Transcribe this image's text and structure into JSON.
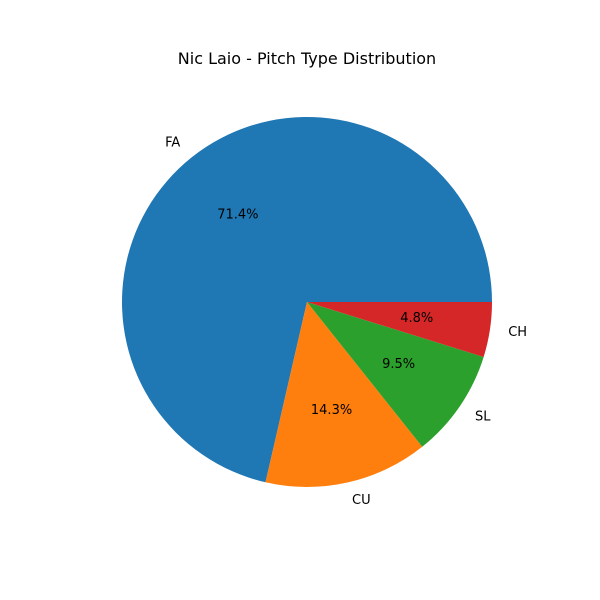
{
  "chart_data": {
    "type": "pie",
    "title": "Nic Laio - Pitch Type Distribution",
    "categories": [
      "FA",
      "CU",
      "SL",
      "CH"
    ],
    "values": [
      71.4,
      14.3,
      9.5,
      4.8
    ],
    "percent_labels": [
      "71.4%",
      "14.3%",
      "9.5%",
      "4.8%"
    ],
    "colors": [
      "#1f77b4",
      "#ff7f0e",
      "#2ca02c",
      "#d62728"
    ],
    "start_angle_deg": 0,
    "direction": "counterclockwise"
  }
}
